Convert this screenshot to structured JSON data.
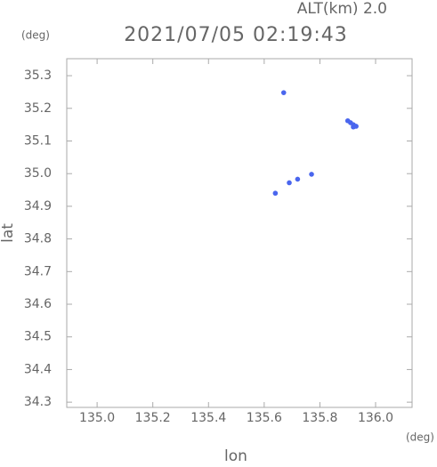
{
  "chart_data": {
    "type": "scatter",
    "title": "2021/07/05 02:19:43",
    "subtitle": "ALT(km) 2.0",
    "x_label": "lon",
    "y_label": "lat",
    "x_unit": "(deg)",
    "y_unit": "(deg)",
    "x": [
      135.67,
      135.64,
      135.9,
      135.91,
      135.92,
      135.92,
      135.93,
      135.69,
      135.72,
      135.77
    ],
    "y": [
      35.248,
      34.94,
      35.162,
      35.156,
      35.15,
      35.143,
      35.145,
      34.972,
      34.983,
      34.998
    ],
    "color": "#4a66ee",
    "xlim": [
      134.891,
      136.131
    ],
    "ylim": [
      34.284,
      35.352
    ],
    "xticks": [
      {
        "value": 135.0,
        "label": "135.0"
      },
      135.2,
      135.4,
      135.6,
      135.8,
      {
        "value": 136.0,
        "label": "136.0"
      }
    ],
    "yticks": [
      34.3,
      34.4,
      34.5,
      34.6,
      34.7,
      34.8,
      34.9,
      {
        "value": 35.0,
        "label": "35.0"
      },
      35.1,
      35.2,
      35.3
    ]
  }
}
